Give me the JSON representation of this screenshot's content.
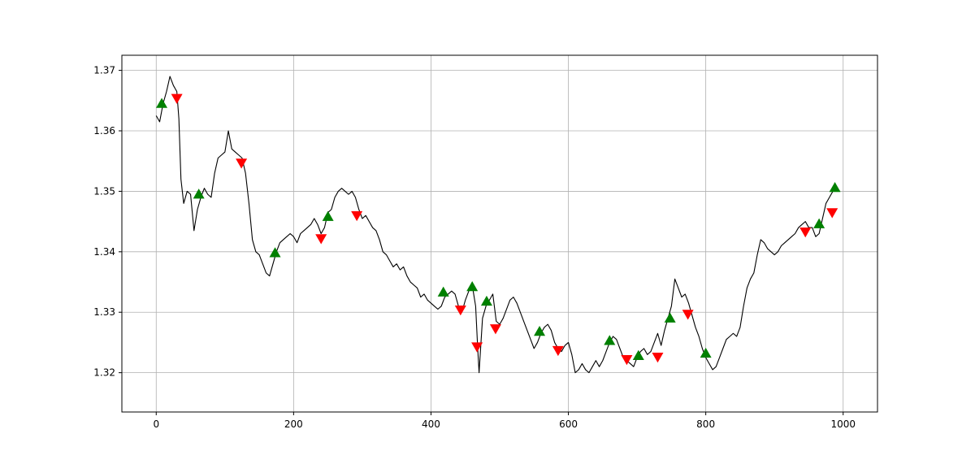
{
  "colors": {
    "price_line": "#000000",
    "buy_marker": "#008000",
    "sell_marker": "#ff0000",
    "grid": "#b0b0b0",
    "axes": "#000000",
    "background": "#ffffff"
  },
  "chart_data": {
    "type": "line",
    "title": "",
    "xlabel": "",
    "ylabel": "",
    "xlim": [
      -50,
      1050
    ],
    "ylim": [
      1.3135,
      1.3725
    ],
    "grid": true,
    "legend": "none",
    "xticks": [
      0,
      200,
      400,
      600,
      800,
      1000
    ],
    "xtick_labels": [
      "0",
      "200",
      "400",
      "600",
      "800",
      "1000"
    ],
    "yticks": [
      1.32,
      1.33,
      1.34,
      1.35,
      1.36,
      1.37
    ],
    "ytick_labels": [
      "1.32",
      "1.33",
      "1.34",
      "1.35",
      "1.36",
      "1.37"
    ],
    "series": [
      {
        "role": "price",
        "style": "line",
        "points": [
          [
            0,
            1.3625
          ],
          [
            5,
            1.3615
          ],
          [
            10,
            1.3645
          ],
          [
            15,
            1.3665
          ],
          [
            20,
            1.369
          ],
          [
            25,
            1.3675
          ],
          [
            30,
            1.3665
          ],
          [
            33,
            1.362
          ],
          [
            36,
            1.352
          ],
          [
            40,
            1.348
          ],
          [
            45,
            1.35
          ],
          [
            50,
            1.3495
          ],
          [
            55,
            1.3435
          ],
          [
            60,
            1.347
          ],
          [
            65,
            1.349
          ],
          [
            70,
            1.3505
          ],
          [
            75,
            1.3495
          ],
          [
            80,
            1.349
          ],
          [
            85,
            1.353
          ],
          [
            90,
            1.3555
          ],
          [
            95,
            1.356
          ],
          [
            100,
            1.3565
          ],
          [
            105,
            1.36
          ],
          [
            110,
            1.357
          ],
          [
            115,
            1.3565
          ],
          [
            120,
            1.356
          ],
          [
            125,
            1.3555
          ],
          [
            130,
            1.353
          ],
          [
            135,
            1.348
          ],
          [
            140,
            1.342
          ],
          [
            145,
            1.34
          ],
          [
            150,
            1.3395
          ],
          [
            155,
            1.338
          ],
          [
            160,
            1.3365
          ],
          [
            165,
            1.336
          ],
          [
            170,
            1.338
          ],
          [
            175,
            1.34
          ],
          [
            180,
            1.3415
          ],
          [
            185,
            1.342
          ],
          [
            190,
            1.3425
          ],
          [
            195,
            1.343
          ],
          [
            200,
            1.3425
          ],
          [
            205,
            1.3415
          ],
          [
            210,
            1.343
          ],
          [
            215,
            1.3435
          ],
          [
            220,
            1.344
          ],
          [
            225,
            1.3445
          ],
          [
            230,
            1.3455
          ],
          [
            235,
            1.3445
          ],
          [
            240,
            1.343
          ],
          [
            245,
            1.344
          ],
          [
            250,
            1.3465
          ],
          [
            255,
            1.347
          ],
          [
            260,
            1.349
          ],
          [
            265,
            1.35
          ],
          [
            270,
            1.3505
          ],
          [
            275,
            1.35
          ],
          [
            280,
            1.3495
          ],
          [
            285,
            1.35
          ],
          [
            290,
            1.349
          ],
          [
            295,
            1.347
          ],
          [
            300,
            1.3455
          ],
          [
            305,
            1.346
          ],
          [
            310,
            1.345
          ],
          [
            315,
            1.344
          ],
          [
            320,
            1.3435
          ],
          [
            325,
            1.342
          ],
          [
            330,
            1.34
          ],
          [
            335,
            1.3395
          ],
          [
            340,
            1.3385
          ],
          [
            345,
            1.3375
          ],
          [
            350,
            1.338
          ],
          [
            355,
            1.337
          ],
          [
            360,
            1.3375
          ],
          [
            365,
            1.336
          ],
          [
            370,
            1.335
          ],
          [
            375,
            1.3345
          ],
          [
            380,
            1.334
          ],
          [
            385,
            1.3325
          ],
          [
            390,
            1.333
          ],
          [
            395,
            1.332
          ],
          [
            400,
            1.3315
          ],
          [
            405,
            1.331
          ],
          [
            410,
            1.3305
          ],
          [
            415,
            1.331
          ],
          [
            420,
            1.3325
          ],
          [
            425,
            1.333
          ],
          [
            430,
            1.3335
          ],
          [
            435,
            1.333
          ],
          [
            440,
            1.331
          ],
          [
            445,
            1.33
          ],
          [
            450,
            1.332
          ],
          [
            455,
            1.3335
          ],
          [
            460,
            1.3345
          ],
          [
            465,
            1.331
          ],
          [
            468,
            1.324
          ],
          [
            470,
            1.32
          ],
          [
            475,
            1.329
          ],
          [
            480,
            1.331
          ],
          [
            485,
            1.332
          ],
          [
            490,
            1.333
          ],
          [
            495,
            1.3285
          ],
          [
            500,
            1.328
          ],
          [
            505,
            1.329
          ],
          [
            510,
            1.3305
          ],
          [
            515,
            1.332
          ],
          [
            520,
            1.3325
          ],
          [
            525,
            1.3315
          ],
          [
            530,
            1.33
          ],
          [
            535,
            1.3285
          ],
          [
            540,
            1.327
          ],
          [
            545,
            1.3255
          ],
          [
            550,
            1.324
          ],
          [
            555,
            1.325
          ],
          [
            560,
            1.3265
          ],
          [
            565,
            1.3275
          ],
          [
            570,
            1.328
          ],
          [
            575,
            1.327
          ],
          [
            580,
            1.325
          ],
          [
            585,
            1.324
          ],
          [
            590,
            1.3235
          ],
          [
            595,
            1.3245
          ],
          [
            600,
            1.325
          ],
          [
            605,
            1.323
          ],
          [
            610,
            1.32
          ],
          [
            615,
            1.3205
          ],
          [
            620,
            1.3215
          ],
          [
            625,
            1.3205
          ],
          [
            630,
            1.32
          ],
          [
            635,
            1.321
          ],
          [
            640,
            1.322
          ],
          [
            645,
            1.321
          ],
          [
            650,
            1.322
          ],
          [
            655,
            1.3235
          ],
          [
            660,
            1.325
          ],
          [
            665,
            1.326
          ],
          [
            670,
            1.3255
          ],
          [
            675,
            1.324
          ],
          [
            680,
            1.3225
          ],
          [
            685,
            1.322
          ],
          [
            690,
            1.3215
          ],
          [
            695,
            1.321
          ],
          [
            700,
            1.3225
          ],
          [
            705,
            1.3235
          ],
          [
            710,
            1.324
          ],
          [
            715,
            1.323
          ],
          [
            720,
            1.3235
          ],
          [
            725,
            1.325
          ],
          [
            730,
            1.3265
          ],
          [
            735,
            1.3245
          ],
          [
            740,
            1.327
          ],
          [
            745,
            1.329
          ],
          [
            750,
            1.331
          ],
          [
            755,
            1.3355
          ],
          [
            760,
            1.334
          ],
          [
            765,
            1.3325
          ],
          [
            770,
            1.333
          ],
          [
            775,
            1.3315
          ],
          [
            780,
            1.3295
          ],
          [
            785,
            1.3275
          ],
          [
            790,
            1.326
          ],
          [
            795,
            1.324
          ],
          [
            800,
            1.3225
          ],
          [
            805,
            1.3215
          ],
          [
            810,
            1.3205
          ],
          [
            815,
            1.321
          ],
          [
            820,
            1.3225
          ],
          [
            825,
            1.324
          ],
          [
            830,
            1.3255
          ],
          [
            835,
            1.326
          ],
          [
            840,
            1.3265
          ],
          [
            845,
            1.326
          ],
          [
            850,
            1.3275
          ],
          [
            855,
            1.331
          ],
          [
            860,
            1.334
          ],
          [
            865,
            1.3355
          ],
          [
            870,
            1.3365
          ],
          [
            875,
            1.3395
          ],
          [
            880,
            1.342
          ],
          [
            885,
            1.3415
          ],
          [
            890,
            1.3405
          ],
          [
            895,
            1.34
          ],
          [
            900,
            1.3395
          ],
          [
            905,
            1.34
          ],
          [
            910,
            1.341
          ],
          [
            915,
            1.3415
          ],
          [
            920,
            1.342
          ],
          [
            925,
            1.3425
          ],
          [
            930,
            1.343
          ],
          [
            935,
            1.344
          ],
          [
            940,
            1.3445
          ],
          [
            945,
            1.345
          ],
          [
            950,
            1.344
          ],
          [
            955,
            1.344
          ],
          [
            960,
            1.3425
          ],
          [
            965,
            1.343
          ],
          [
            970,
            1.3455
          ],
          [
            975,
            1.348
          ],
          [
            980,
            1.349
          ],
          [
            985,
            1.35
          ],
          [
            990,
            1.3505
          ],
          [
            995,
            1.35
          ]
        ]
      },
      {
        "role": "buy-signals",
        "style": "triangle-up",
        "points": [
          [
            8,
            1.3645
          ],
          [
            62,
            1.3495
          ],
          [
            173,
            1.3398
          ],
          [
            250,
            1.3458
          ],
          [
            418,
            1.3333
          ],
          [
            460,
            1.3342
          ],
          [
            481,
            1.3318
          ],
          [
            558,
            1.3268
          ],
          [
            660,
            1.3253
          ],
          [
            702,
            1.3228
          ],
          [
            748,
            1.329
          ],
          [
            800,
            1.3232
          ],
          [
            965,
            1.3446
          ],
          [
            988,
            1.3506
          ]
        ]
      },
      {
        "role": "sell-signals",
        "style": "triangle-down",
        "points": [
          [
            30,
            1.3654
          ],
          [
            124,
            1.3547
          ],
          [
            240,
            1.3422
          ],
          [
            292,
            1.346
          ],
          [
            443,
            1.3304
          ],
          [
            467,
            1.3243
          ],
          [
            494,
            1.3273
          ],
          [
            585,
            1.3237
          ],
          [
            685,
            1.3222
          ],
          [
            730,
            1.3226
          ],
          [
            774,
            1.3297
          ],
          [
            945,
            1.3433
          ],
          [
            984,
            1.3465
          ]
        ]
      }
    ]
  }
}
